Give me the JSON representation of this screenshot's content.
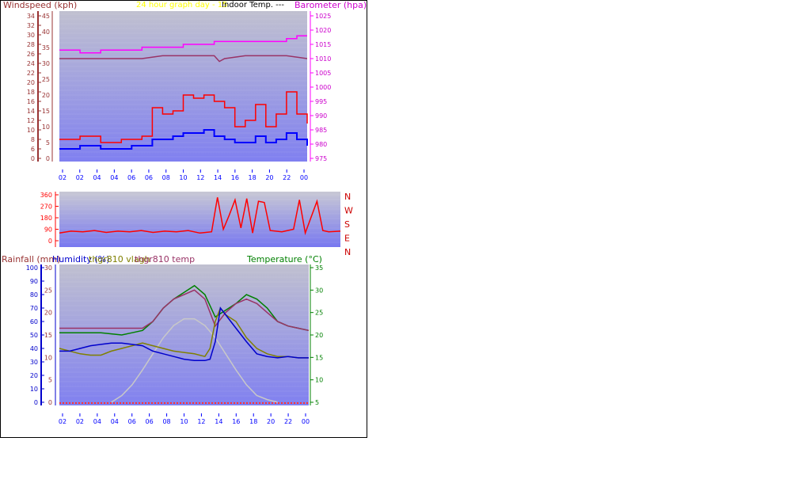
{
  "header": {
    "title": "24 hour graph day - 15",
    "overlay_label": "Indoor Temp. ---"
  },
  "colors": {
    "wind_avg": "#0000ff",
    "wind_gust": "#ff0000",
    "barometer": "#ff00ff",
    "indoor_temp": "#993366",
    "direction": "#ff0000",
    "rain": "#800000",
    "humidity": "#0000cc",
    "vlagh": "#808000",
    "hgr_temp": "#993366",
    "temperature": "#008000",
    "solar": "#c8c8c8",
    "title": "#ffff00"
  },
  "chart_data": [
    {
      "type": "line",
      "id": "wind",
      "left_axis_label": "Windspeed (kph)",
      "right_axis_label": "Barometer (hpa)",
      "y_left_ticks": [
        "0",
        "6",
        "8",
        "10",
        "12",
        "14",
        "16",
        "18",
        "20",
        "22",
        "24",
        "26",
        "28",
        "30",
        "32",
        "34"
      ],
      "y_left2_ticks": [
        "0",
        "5",
        "10",
        "15",
        "20",
        "25",
        "30",
        "35",
        "40",
        "45"
      ],
      "y_right_ticks": [
        "975",
        "980",
        "985",
        "990",
        "995",
        "1000",
        "1005",
        "1010",
        "1015",
        "1020",
        "1025"
      ],
      "ylim_left": [
        0,
        45
      ],
      "ylim_right": [
        975,
        1025
      ],
      "x_ticks": [
        "02",
        "02",
        "04",
        "04",
        "06",
        "06",
        "08",
        "10",
        "12",
        "14",
        "16",
        "18",
        "20",
        "22",
        "00"
      ],
      "series": [
        {
          "key": "barometer",
          "x": [
            0,
            2,
            4,
            6,
            8,
            10,
            12,
            14,
            15,
            16,
            18,
            20,
            22,
            23,
            24
          ],
          "values": [
            1013,
            1012,
            1013,
            1013,
            1014,
            1014,
            1015,
            1015,
            1016,
            1016,
            1016,
            1016,
            1017,
            1018,
            1018
          ]
        },
        {
          "key": "indoor_temp",
          "x": [
            0,
            2,
            4,
            6,
            8,
            10,
            12,
            14,
            15,
            15.5,
            16,
            18,
            20,
            22,
            24
          ],
          "values": [
            1010,
            1010,
            1010,
            1010,
            1010,
            1011,
            1011,
            1011,
            1011,
            1009,
            1010,
            1011,
            1011,
            1011,
            1010
          ]
        },
        {
          "key": "wind_gust",
          "x": [
            0,
            2,
            4,
            6,
            7,
            8,
            9,
            10,
            11,
            12,
            13,
            14,
            15,
            16,
            17,
            18,
            19,
            20,
            21,
            22,
            23,
            24
          ],
          "values": [
            6,
            7,
            5,
            6,
            6,
            7,
            16,
            14,
            15,
            20,
            19,
            20,
            18,
            16,
            10,
            12,
            17,
            10,
            14,
            21,
            14,
            11
          ]
        },
        {
          "key": "wind_avg",
          "x": [
            0,
            2,
            4,
            6,
            7,
            8,
            9,
            10,
            11,
            12,
            13,
            14,
            15,
            16,
            17,
            18,
            19,
            20,
            21,
            22,
            23,
            24
          ],
          "values": [
            3,
            4,
            3,
            3,
            4,
            4,
            6,
            6,
            7,
            8,
            8,
            9,
            7,
            6,
            5,
            5,
            7,
            5,
            6,
            8,
            6,
            4
          ]
        }
      ]
    },
    {
      "type": "line",
      "id": "direction",
      "y_ticks": [
        "0",
        "90",
        "180",
        "270",
        "360"
      ],
      "ylim": [
        0,
        360
      ],
      "right_labels": [
        "N",
        "W",
        "S",
        "E",
        "N"
      ],
      "series": [
        {
          "key": "direction",
          "x": [
            0,
            1,
            2,
            3,
            4,
            5,
            6,
            7,
            8,
            9,
            10,
            11,
            12,
            13,
            13.5,
            14,
            14.5,
            15,
            15.5,
            16,
            16.5,
            17,
            17.5,
            18,
            19,
            20,
            20.5,
            21,
            22,
            22.5,
            23,
            24
          ],
          "values": [
            60,
            75,
            70,
            80,
            65,
            75,
            70,
            80,
            65,
            75,
            70,
            80,
            60,
            70,
            340,
            90,
            200,
            320,
            100,
            330,
            60,
            310,
            300,
            80,
            70,
            90,
            320,
            60,
            310,
            80,
            70,
            75
          ]
        }
      ]
    },
    {
      "type": "line",
      "id": "climate",
      "left_axis_label": "Rainfall (mm)",
      "humidity_label": "Humidity (%)",
      "series_label_1": "thgr810 vlagh",
      "series_label_2": "thgr810 temp",
      "right_axis_label": "Temperature (°C)",
      "y_hum_ticks": [
        "0",
        "10",
        "20",
        "30",
        "40",
        "50",
        "60",
        "70",
        "80",
        "90",
        "100"
      ],
      "y_rain_ticks": [
        "0",
        "5",
        "10",
        "15",
        "20",
        "25",
        "30"
      ],
      "y_temp_ticks": [
        "5",
        "10",
        "15",
        "20",
        "25",
        "30",
        "35"
      ],
      "ylim_hum": [
        0,
        100
      ],
      "ylim_temp": [
        5,
        35
      ],
      "x_ticks": [
        "02",
        "02",
        "04",
        "04",
        "06",
        "06",
        "08",
        "10",
        "12",
        "14",
        "16",
        "18",
        "20",
        "22",
        "00"
      ],
      "series": [
        {
          "key": "hgr_temp",
          "x": [
            0,
            2,
            4,
            6,
            7,
            8,
            9,
            10,
            11,
            12,
            13,
            14,
            15,
            16,
            17,
            18,
            19,
            20,
            21,
            22,
            23,
            24
          ],
          "values": [
            21.5,
            21.5,
            21.5,
            21.5,
            21.5,
            21.5,
            23,
            26,
            28,
            29,
            30,
            28,
            22,
            25,
            27,
            28,
            27,
            25,
            23,
            22,
            21.5,
            21
          ]
        },
        {
          "key": "temperature",
          "x": [
            0,
            2,
            4,
            6,
            7,
            8,
            9,
            10,
            11,
            12,
            13,
            14,
            15,
            16,
            17,
            18,
            19,
            20,
            21,
            22,
            23,
            24
          ],
          "values": [
            20.5,
            20.5,
            20.5,
            20,
            20.5,
            21,
            23,
            26,
            28,
            29.5,
            31,
            29,
            24,
            25.5,
            27,
            29,
            28,
            26,
            23,
            22,
            21.5,
            21
          ]
        },
        {
          "key": "humidity",
          "x": [
            0,
            1,
            2,
            3,
            4,
            5,
            6,
            7,
            8,
            9,
            10,
            11,
            12,
            13,
            14,
            14.5,
            15,
            15.5,
            16,
            17,
            18,
            19,
            20,
            21,
            22,
            23,
            24
          ],
          "values": [
            38,
            38,
            40,
            42,
            43,
            44,
            44,
            43,
            42,
            38,
            36,
            34,
            32,
            31,
            31,
            32,
            45,
            70,
            65,
            55,
            45,
            36,
            34,
            33,
            34,
            33,
            33
          ]
        },
        {
          "key": "vlagh",
          "x": [
            0,
            1,
            2,
            3,
            4,
            5,
            6,
            7,
            8,
            9,
            10,
            11,
            12,
            13,
            14,
            14.5,
            15,
            15.5,
            16,
            17,
            18,
            19,
            20,
            21,
            22,
            23,
            24
          ],
          "values": [
            40,
            38,
            36,
            35,
            35,
            38,
            40,
            42,
            44,
            42,
            40,
            38,
            37,
            36,
            34,
            40,
            60,
            70,
            65,
            60,
            48,
            40,
            36,
            34,
            34,
            33,
            33
          ]
        },
        {
          "key": "solar",
          "x": [
            5,
            6,
            7,
            8,
            9,
            10,
            11,
            12,
            13,
            14,
            15,
            16,
            17,
            18,
            19,
            20,
            21
          ],
          "values": [
            0,
            5,
            13,
            24,
            36,
            48,
            57,
            62,
            62,
            57,
            48,
            36,
            24,
            13,
            5,
            2,
            0
          ]
        }
      ]
    }
  ]
}
